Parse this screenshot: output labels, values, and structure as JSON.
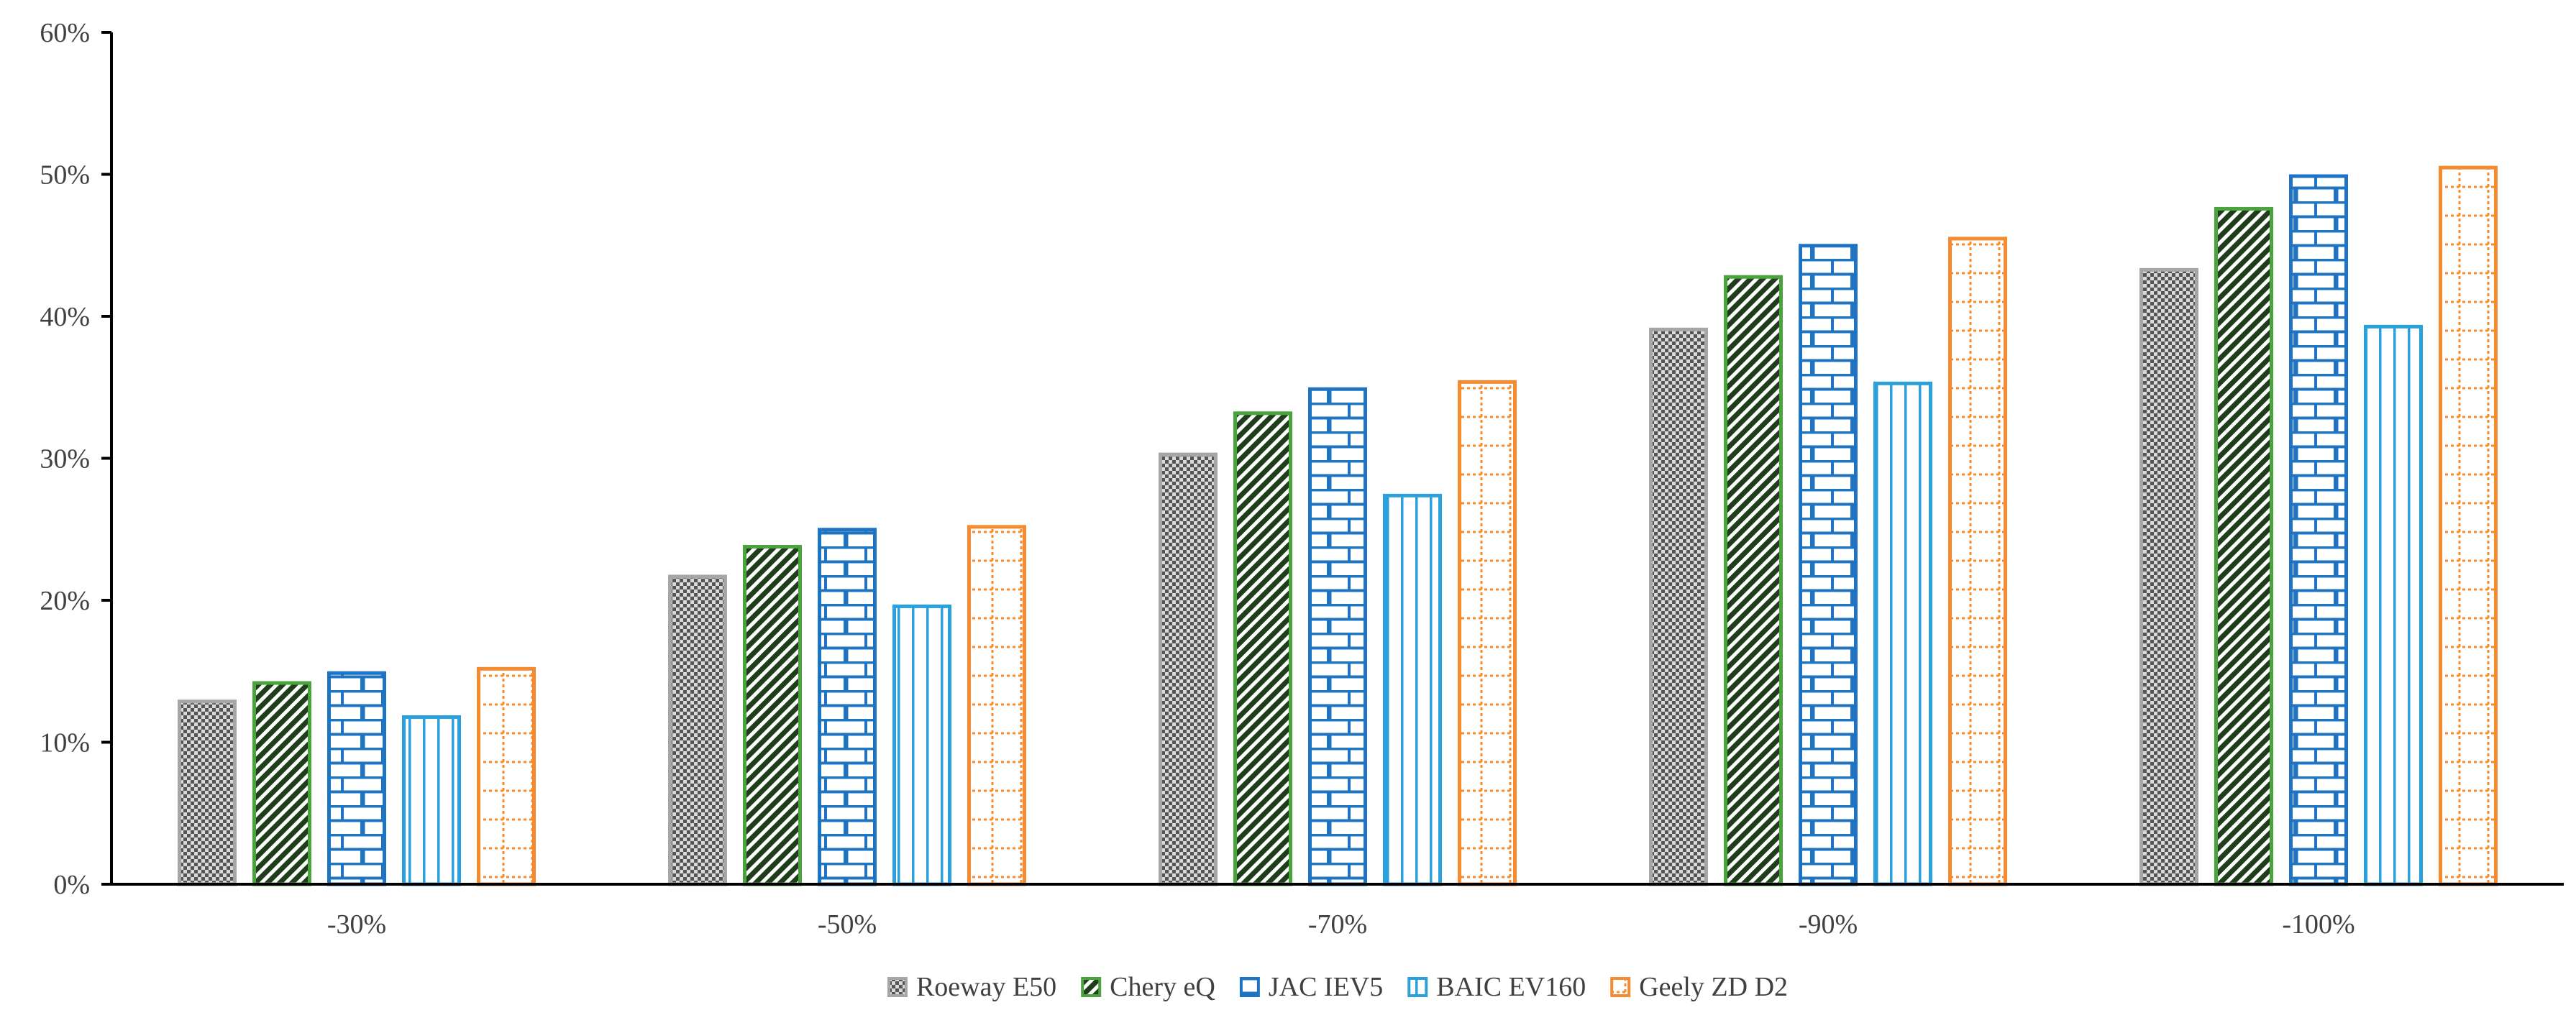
{
  "chart_data": {
    "type": "bar",
    "categories": [
      "-30%",
      "-50%",
      "-70%",
      "-90%",
      "-100%"
    ],
    "ylim": [
      0,
      0.6
    ],
    "yticks": [
      0,
      0.1,
      0.2,
      0.3,
      0.4,
      0.5,
      0.6
    ],
    "ytick_labels": [
      "0%",
      "10%",
      "20%",
      "30%",
      "40%",
      "50%",
      "60%"
    ],
    "grid": false,
    "legend_position": "bottom",
    "series": [
      {
        "name": "Roeway E50",
        "color": "#a6a6a6",
        "pattern": "checker",
        "values": [
          0.13,
          0.218,
          0.304,
          0.392,
          0.434
        ]
      },
      {
        "name": "Chery eQ",
        "color": "#4aa33c",
        "pattern": "diagonal",
        "values": [
          0.143,
          0.239,
          0.333,
          0.429,
          0.477
        ]
      },
      {
        "name": "JAC IEV5",
        "color": "#1e73c3",
        "pattern": "brick",
        "values": [
          0.15,
          0.251,
          0.35,
          0.451,
          0.5
        ]
      },
      {
        "name": "BAIC EV160",
        "color": "#2aa0dc",
        "pattern": "vertical",
        "values": [
          0.119,
          0.197,
          0.275,
          0.354,
          0.394
        ]
      },
      {
        "name": "Geely ZD D2",
        "color": "#f58a2e",
        "pattern": "dotted-grid",
        "values": [
          0.153,
          0.253,
          0.355,
          0.456,
          0.506
        ]
      }
    ]
  }
}
